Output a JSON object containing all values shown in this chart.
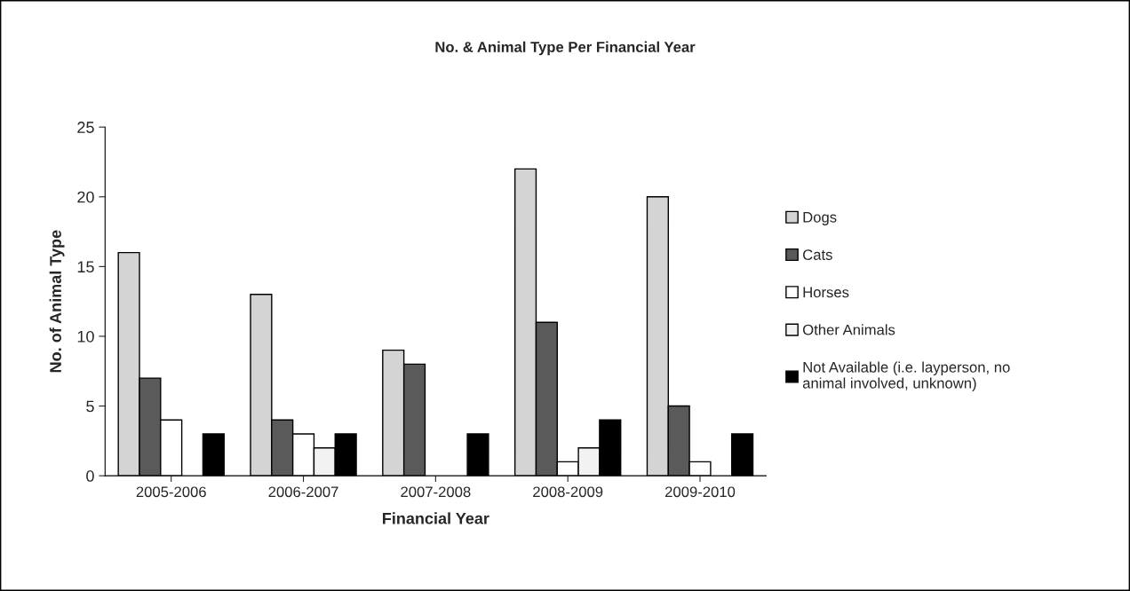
{
  "chart_data": {
    "type": "bar",
    "title": "No. & Animal Type Per Financial Year",
    "xlabel": "Financial Year",
    "ylabel": "No. of Animal Type",
    "categories": [
      "2005-2006",
      "2006-2007",
      "2007-2008",
      "2008-2009",
      "2009-2010"
    ],
    "series": [
      {
        "name": "Dogs",
        "color": "#d4d4d4",
        "values": [
          16,
          13,
          9,
          22,
          20
        ]
      },
      {
        "name": "Cats",
        "color": "#5a5a5a",
        "values": [
          7,
          4,
          8,
          11,
          5
        ]
      },
      {
        "name": "Horses",
        "color": "#ffffff",
        "values": [
          4,
          3,
          0,
          1,
          1
        ]
      },
      {
        "name": "Other Animals",
        "color": "#f2f2f2",
        "values": [
          0,
          2,
          0,
          2,
          0
        ]
      },
      {
        "name": "Not Available (i.e. layperson, no animal involved, unknown)",
        "color": "#000000",
        "values": [
          3,
          3,
          3,
          4,
          3
        ]
      }
    ],
    "ylim": [
      0,
      25
    ],
    "yticks": [
      0,
      5,
      10,
      15,
      20,
      25
    ],
    "legend": "right",
    "grid": false
  }
}
